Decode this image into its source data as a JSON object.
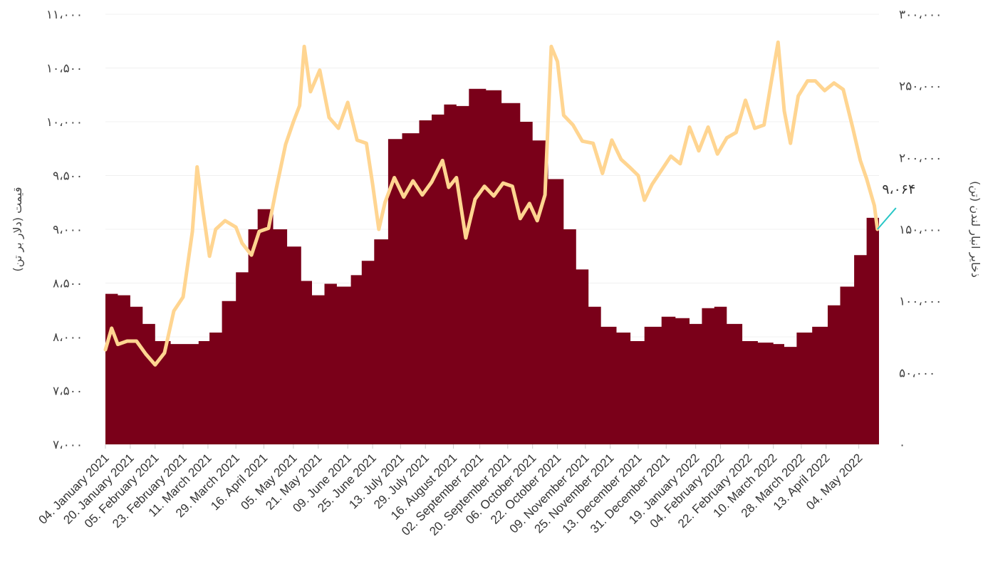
{
  "chart_data": {
    "type": "area+line",
    "title": "",
    "y_left": {
      "label": "قیمت (دلار بر تن)",
      "min": 7000,
      "max": 11000,
      "ticks": [
        7000,
        7500,
        8000,
        8500,
        9000,
        9500,
        10000,
        10500,
        11000
      ],
      "tick_labels": [
        "۷،۰۰۰",
        "۷،۵۰۰",
        "۸،۰۰۰",
        "۸،۵۰۰",
        "۹،۰۰۰",
        "۹،۵۰۰",
        "۱۰،۰۰۰",
        "۱۰،۵۰۰",
        "۱۱،۰۰۰"
      ]
    },
    "y_right": {
      "label": "ذخایر انبار لندن (تن)",
      "min": 0,
      "max": 300000,
      "ticks": [
        0,
        50000,
        100000,
        150000,
        200000,
        250000,
        300000
      ],
      "tick_labels": [
        "۰",
        "۵۰،۰۰۰",
        "۱۰۰،۰۰۰",
        "۱۵۰،۰۰۰",
        "۲۰۰،۰۰۰",
        "۲۵۰،۰۰۰",
        "۳۰۰،۰۰۰"
      ]
    },
    "x": {
      "start": "2021-01-04",
      "end": "2022-05-17",
      "tick_dates": [
        "2021-01-04",
        "2021-01-20",
        "2021-02-05",
        "2021-02-23",
        "2021-03-11",
        "2021-03-29",
        "2021-04-16",
        "2021-05-05",
        "2021-05-21",
        "2021-06-09",
        "2021-06-25",
        "2021-07-13",
        "2021-07-29",
        "2021-08-16",
        "2021-09-02",
        "2021-09-20",
        "2021-10-06",
        "2021-10-22",
        "2021-11-09",
        "2021-11-25",
        "2021-12-13",
        "2021-12-31",
        "2022-01-19",
        "2022-02-04",
        "2022-02-22",
        "2022-03-10",
        "2022-03-28",
        "2022-04-13",
        "2022-05-04"
      ],
      "tick_labels": [
        "04. January 2021",
        "20. January 2021",
        "05. February 2021",
        "23. February 2021",
        "11. March 2021",
        "29. March 2021",
        "16. April 2021",
        "05. May 2021",
        "21. May 2021",
        "09. June 2021",
        "25. June 2021",
        "13. July 2021",
        "29. July 2021",
        "16. August 2021",
        "02. September 2021",
        "20. September 2021",
        "06. October 2021",
        "22. October 2021",
        "09. November 2021",
        "25. November 2021",
        "13. December 2021",
        "31. December 2021",
        "19. January 2022",
        "04. February 2022",
        "22. February 2022",
        "10. March 2022",
        "28. March 2022",
        "13. April 2022",
        "04. May 2022"
      ]
    },
    "series": [
      {
        "name": "",
        "kind": "area",
        "axis": "right",
        "color": "#7a0019",
        "points": [
          [
            "2021-01-04",
            105000
          ],
          [
            "2021-01-12",
            104000
          ],
          [
            "2021-01-20",
            96000
          ],
          [
            "2021-01-28",
            84000
          ],
          [
            "2021-02-05",
            72000
          ],
          [
            "2021-02-15",
            70000
          ],
          [
            "2021-02-25",
            70000
          ],
          [
            "2021-03-05",
            72000
          ],
          [
            "2021-03-12",
            78000
          ],
          [
            "2021-03-20",
            100000
          ],
          [
            "2021-03-29",
            120000
          ],
          [
            "2021-04-06",
            150000
          ],
          [
            "2021-04-12",
            164000
          ],
          [
            "2021-04-22",
            150000
          ],
          [
            "2021-05-01",
            138000
          ],
          [
            "2021-05-10",
            114000
          ],
          [
            "2021-05-17",
            104000
          ],
          [
            "2021-05-25",
            112000
          ],
          [
            "2021-06-02",
            110000
          ],
          [
            "2021-06-11",
            118000
          ],
          [
            "2021-06-18",
            128000
          ],
          [
            "2021-06-26",
            143000
          ],
          [
            "2021-07-05",
            213000
          ],
          [
            "2021-07-14",
            217000
          ],
          [
            "2021-07-25",
            226000
          ],
          [
            "2021-08-02",
            230000
          ],
          [
            "2021-08-10",
            237000
          ],
          [
            "2021-08-18",
            236000
          ],
          [
            "2021-08-26",
            248000
          ],
          [
            "2021-09-06",
            247000
          ],
          [
            "2021-09-16",
            238000
          ],
          [
            "2021-09-28",
            225000
          ],
          [
            "2021-10-06",
            212000
          ],
          [
            "2021-10-16",
            185000
          ],
          [
            "2021-10-26",
            150000
          ],
          [
            "2021-11-03",
            122000
          ],
          [
            "2021-11-11",
            96000
          ],
          [
            "2021-11-19",
            82000
          ],
          [
            "2021-11-29",
            78000
          ],
          [
            "2021-12-08",
            72000
          ],
          [
            "2021-12-17",
            82000
          ],
          [
            "2021-12-28",
            89000
          ],
          [
            "2022-01-06",
            88000
          ],
          [
            "2022-01-15",
            84000
          ],
          [
            "2022-01-23",
            95000
          ],
          [
            "2022-01-31",
            96000
          ],
          [
            "2022-02-08",
            84000
          ],
          [
            "2022-02-18",
            72000
          ],
          [
            "2022-02-28",
            71000
          ],
          [
            "2022-03-10",
            70000
          ],
          [
            "2022-03-17",
            68000
          ],
          [
            "2022-03-25",
            78000
          ],
          [
            "2022-04-04",
            82000
          ],
          [
            "2022-04-14",
            97000
          ],
          [
            "2022-04-22",
            110000
          ],
          [
            "2022-05-01",
            132000
          ],
          [
            "2022-05-09",
            158000
          ],
          [
            "2022-05-17",
            167000
          ]
        ]
      },
      {
        "name": "",
        "kind": "line",
        "axis": "left",
        "color": "#ffd591",
        "points": [
          [
            "2021-01-04",
            7880
          ],
          [
            "2021-01-08",
            8080
          ],
          [
            "2021-01-12",
            7930
          ],
          [
            "2021-01-18",
            7960
          ],
          [
            "2021-01-24",
            7960
          ],
          [
            "2021-01-30",
            7840
          ],
          [
            "2021-02-05",
            7740
          ],
          [
            "2021-02-11",
            7850
          ],
          [
            "2021-02-17",
            8240
          ],
          [
            "2021-02-23",
            8370
          ],
          [
            "2021-03-01",
            8980
          ],
          [
            "2021-03-04",
            9580
          ],
          [
            "2021-03-08",
            9150
          ],
          [
            "2021-03-12",
            8750
          ],
          [
            "2021-03-16",
            9000
          ],
          [
            "2021-03-22",
            9080
          ],
          [
            "2021-03-29",
            9020
          ],
          [
            "2021-04-02",
            8870
          ],
          [
            "2021-04-08",
            8760
          ],
          [
            "2021-04-13",
            8980
          ],
          [
            "2021-04-19",
            9010
          ],
          [
            "2021-04-24",
            9380
          ],
          [
            "2021-04-30",
            9790
          ],
          [
            "2021-05-05",
            10000
          ],
          [
            "2021-05-09",
            10150
          ],
          [
            "2021-05-12",
            10700
          ],
          [
            "2021-05-16",
            10280
          ],
          [
            "2021-05-22",
            10480
          ],
          [
            "2021-05-28",
            10040
          ],
          [
            "2021-06-03",
            9940
          ],
          [
            "2021-06-09",
            10180
          ],
          [
            "2021-06-15",
            9830
          ],
          [
            "2021-06-21",
            9800
          ],
          [
            "2021-06-25",
            9420
          ],
          [
            "2021-06-29",
            9000
          ],
          [
            "2021-07-03",
            9250
          ],
          [
            "2021-07-09",
            9480
          ],
          [
            "2021-07-15",
            9300
          ],
          [
            "2021-07-21",
            9450
          ],
          [
            "2021-07-27",
            9320
          ],
          [
            "2021-08-02",
            9440
          ],
          [
            "2021-08-09",
            9640
          ],
          [
            "2021-08-13",
            9390
          ],
          [
            "2021-08-18",
            9480
          ],
          [
            "2021-08-24",
            8920
          ],
          [
            "2021-08-30",
            9280
          ],
          [
            "2021-09-05",
            9400
          ],
          [
            "2021-09-11",
            9310
          ],
          [
            "2021-09-17",
            9430
          ],
          [
            "2021-09-23",
            9400
          ],
          [
            "2021-09-28",
            9100
          ],
          [
            "2021-10-04",
            9240
          ],
          [
            "2021-10-09",
            9080
          ],
          [
            "2021-10-14",
            9320
          ],
          [
            "2021-10-18",
            10700
          ],
          [
            "2021-10-22",
            10560
          ],
          [
            "2021-10-26",
            10060
          ],
          [
            "2021-11-01",
            9970
          ],
          [
            "2021-11-07",
            9820
          ],
          [
            "2021-11-14",
            9800
          ],
          [
            "2021-11-20",
            9520
          ],
          [
            "2021-11-26",
            9830
          ],
          [
            "2021-12-02",
            9650
          ],
          [
            "2021-12-08",
            9570
          ],
          [
            "2021-12-13",
            9500
          ],
          [
            "2021-12-17",
            9270
          ],
          [
            "2021-12-22",
            9420
          ],
          [
            "2021-12-28",
            9550
          ],
          [
            "2022-01-03",
            9680
          ],
          [
            "2022-01-09",
            9610
          ],
          [
            "2022-01-15",
            9950
          ],
          [
            "2022-01-21",
            9730
          ],
          [
            "2022-01-27",
            9950
          ],
          [
            "2022-02-02",
            9700
          ],
          [
            "2022-02-08",
            9850
          ],
          [
            "2022-02-14",
            9900
          ],
          [
            "2022-02-20",
            10200
          ],
          [
            "2022-02-26",
            9940
          ],
          [
            "2022-03-04",
            9970
          ],
          [
            "2022-03-09",
            10400
          ],
          [
            "2022-03-13",
            10740
          ],
          [
            "2022-03-17",
            10100
          ],
          [
            "2022-03-21",
            9800
          ],
          [
            "2022-03-26",
            10240
          ],
          [
            "2022-04-01",
            10380
          ],
          [
            "2022-04-06",
            10380
          ],
          [
            "2022-04-12",
            10290
          ],
          [
            "2022-04-18",
            10360
          ],
          [
            "2022-04-24",
            10300
          ],
          [
            "2022-04-30",
            9950
          ],
          [
            "2022-05-05",
            9640
          ],
          [
            "2022-05-09",
            9470
          ],
          [
            "2022-05-12",
            9320
          ],
          [
            "2022-05-14",
            9220
          ],
          [
            "2022-05-16",
            9000
          ]
        ]
      }
    ],
    "callout": {
      "label": "۹،۰۶۴",
      "value": 9064,
      "color": "#26c6c6"
    },
    "grid": true,
    "legend": "none"
  }
}
